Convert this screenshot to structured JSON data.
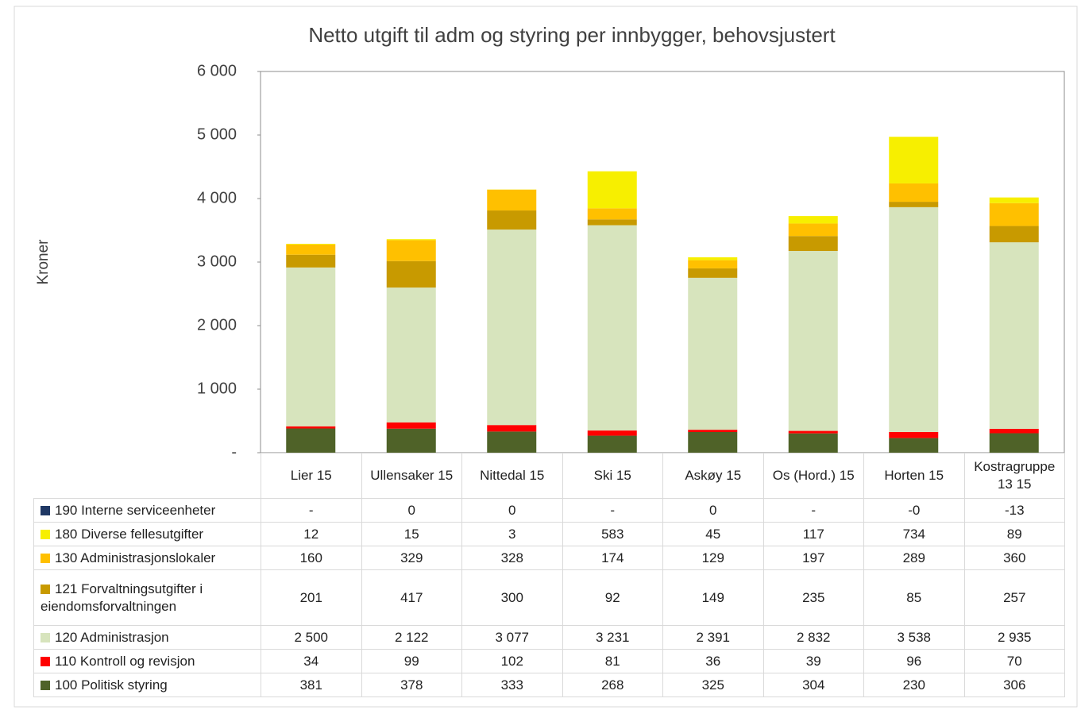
{
  "chart_data": {
    "type": "stacked_bar",
    "title": "Netto utgift til adm og styring per innbygger, behovsjustert",
    "y_label": "Kroner",
    "categories": [
      "Lier 15",
      "Ullensaker 15",
      "Nittedal 15",
      "Ski 15",
      "Askøy 15",
      "Os (Hord.) 15",
      "Horten 15",
      "Kostragruppe 13 15"
    ],
    "ylim": [
      0,
      6000
    ],
    "yticks": [
      {
        "value": 0,
        "label": "-"
      },
      {
        "value": 1000,
        "label": "1 000"
      },
      {
        "value": 2000,
        "label": "2 000"
      },
      {
        "value": 3000,
        "label": "3 000"
      },
      {
        "value": 4000,
        "label": "4 000"
      },
      {
        "value": 5000,
        "label": "5 000"
      },
      {
        "value": 6000,
        "label": "6 000"
      }
    ],
    "grid": false,
    "series": [
      {
        "name": "100 Politisk styring",
        "color": "#4f6228",
        "values": [
          381,
          378,
          333,
          268,
          325,
          304,
          230,
          306
        ]
      },
      {
        "name": "110 Kontroll og revisjon",
        "color": "#ff0000",
        "values": [
          34,
          99,
          102,
          81,
          36,
          39,
          96,
          70
        ]
      },
      {
        "name": "120 Administrasjon",
        "color": "#d7e4bd",
        "values": [
          2500,
          2122,
          3077,
          3231,
          2391,
          2832,
          3538,
          2935
        ],
        "value_labels": [
          "2 500",
          "2 122",
          "3 077",
          "3 231",
          "2 391",
          "2 832",
          "3 538",
          "2 935"
        ]
      },
      {
        "name": "121 Forvaltningsutgifter i eiendomsforvaltningen",
        "color": "#c89a00",
        "values": [
          201,
          417,
          300,
          92,
          149,
          235,
          85,
          257
        ]
      },
      {
        "name": "130 Administrasjonslokaler",
        "color": "#ffc000",
        "values": [
          160,
          329,
          328,
          174,
          129,
          197,
          289,
          360
        ]
      },
      {
        "name": "180 Diverse fellesutgifter",
        "color": "#f7ef00",
        "values": [
          12,
          15,
          3,
          583,
          45,
          117,
          734,
          89
        ]
      },
      {
        "name": "190 Interne serviceenheter",
        "color": "#1f3864",
        "values": [
          0,
          0,
          0,
          0,
          0,
          0,
          0,
          -13
        ],
        "value_labels": [
          "-",
          "0",
          "0",
          "-",
          "0",
          "-",
          "-0",
          "-13"
        ]
      }
    ]
  }
}
